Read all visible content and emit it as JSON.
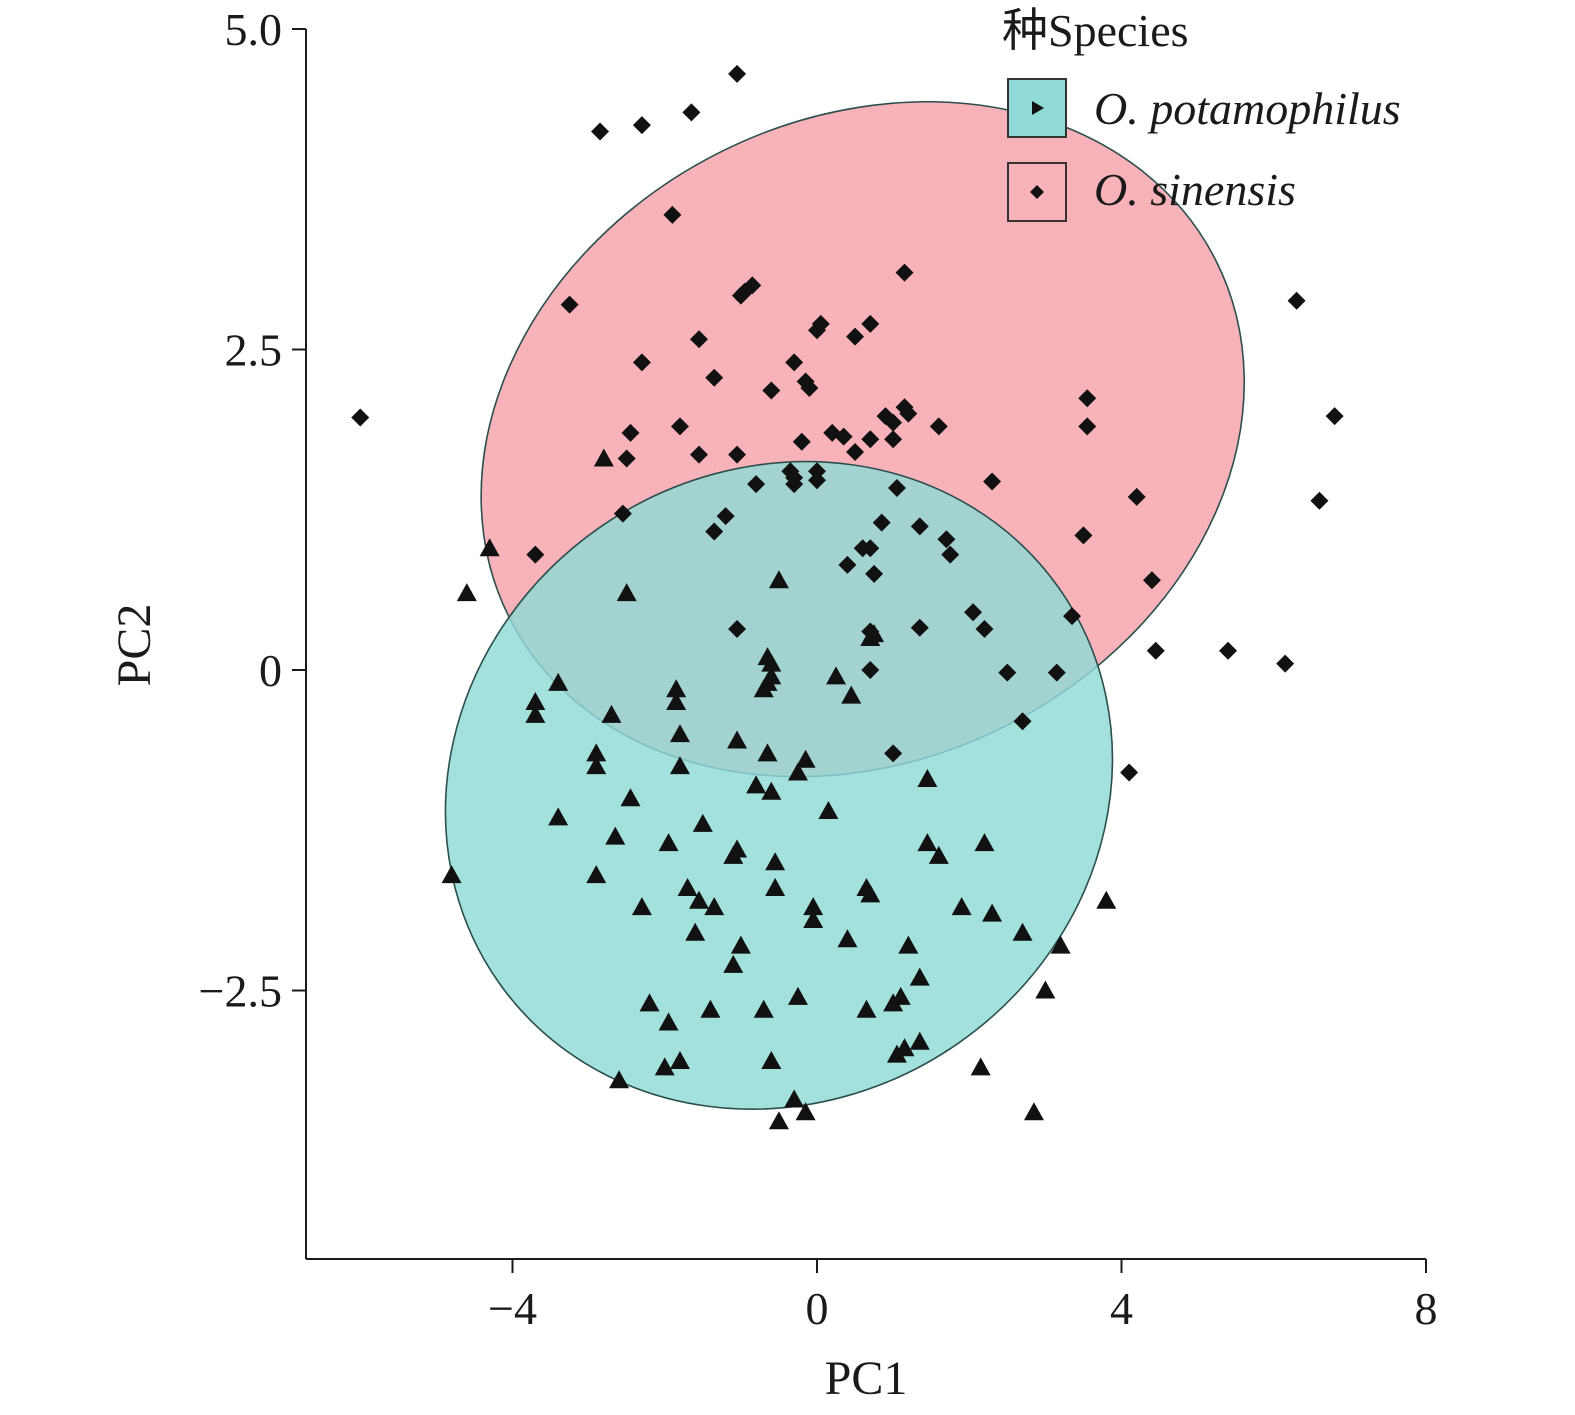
{
  "chart_data": {
    "type": "scatter",
    "title": "",
    "xlabel": "PC1",
    "ylabel": "PC2",
    "xlim": [
      -6.7,
      8
    ],
    "ylim": [
      -4.55,
      5.0
    ],
    "xticks": [
      -4,
      0,
      4,
      8
    ],
    "xtick_labels": [
      "−4",
      "0",
      "4",
      "8"
    ],
    "yticks": [
      5.0,
      2.5,
      0,
      -2.5
    ],
    "ytick_labels": [
      "5.0",
      "2.5",
      "0",
      "−2.5"
    ],
    "grid": false,
    "legend": {
      "title": "种Species",
      "position": "top-right"
    },
    "series": [
      {
        "name": "O. potamophilus",
        "marker": "triangle",
        "fill": "#8fdad6",
        "ellipse": {
          "cx": -0.5,
          "cy": -0.9,
          "rx": 4.5,
          "ry": 2.45,
          "angle_deg": -35
        },
        "points": [
          [
            -2.8,
            1.65
          ],
          [
            -4.3,
            0.95
          ],
          [
            -4.6,
            0.6
          ],
          [
            -2.5,
            0.6
          ],
          [
            -0.5,
            0.7
          ],
          [
            -3.4,
            -0.1
          ],
          [
            -3.7,
            -0.25
          ],
          [
            -3.7,
            -0.35
          ],
          [
            -2.7,
            -0.35
          ],
          [
            -1.85,
            -0.15
          ],
          [
            -1.85,
            -0.25
          ],
          [
            -1.8,
            -0.5
          ],
          [
            -2.9,
            -0.65
          ],
          [
            -2.9,
            -0.75
          ],
          [
            -1.8,
            -0.75
          ],
          [
            -1.05,
            -0.55
          ],
          [
            -0.65,
            -0.65
          ],
          [
            -0.8,
            -0.9
          ],
          [
            -0.6,
            -0.95
          ],
          [
            -0.15,
            -0.7
          ],
          [
            -0.25,
            -0.8
          ],
          [
            -2.45,
            -1.0
          ],
          [
            -3.4,
            -1.15
          ],
          [
            -2.65,
            -1.3
          ],
          [
            -1.5,
            -1.2
          ],
          [
            -1.95,
            -1.35
          ],
          [
            -1.05,
            -1.4
          ],
          [
            -1.1,
            -1.45
          ],
          [
            -0.55,
            -1.5
          ],
          [
            0.15,
            -1.1
          ],
          [
            -2.9,
            -1.6
          ],
          [
            -4.8,
            -1.6
          ],
          [
            -2.3,
            -1.85
          ],
          [
            -1.7,
            -1.7
          ],
          [
            -1.55,
            -1.8
          ],
          [
            -1.35,
            -1.85
          ],
          [
            -1.6,
            -2.05
          ],
          [
            -0.55,
            -1.7
          ],
          [
            0.65,
            -1.7
          ],
          [
            0.7,
            -1.75
          ],
          [
            -0.05,
            -1.85
          ],
          [
            -0.05,
            -1.95
          ],
          [
            0.4,
            -2.1
          ],
          [
            1.2,
            -2.15
          ],
          [
            1.9,
            -1.85
          ],
          [
            2.3,
            -1.9
          ],
          [
            1.6,
            -1.45
          ],
          [
            2.2,
            -1.35
          ],
          [
            1.45,
            -1.35
          ],
          [
            2.7,
            -2.05
          ],
          [
            3.2,
            -2.15
          ],
          [
            3.8,
            -1.8
          ],
          [
            -1.0,
            -2.15
          ],
          [
            -1.1,
            -2.3
          ],
          [
            1.35,
            -2.4
          ],
          [
            1.1,
            -2.55
          ],
          [
            1.0,
            -2.6
          ],
          [
            -2.2,
            -2.6
          ],
          [
            -1.4,
            -2.65
          ],
          [
            -0.7,
            -2.65
          ],
          [
            -0.25,
            -2.55
          ],
          [
            0.65,
            -2.65
          ],
          [
            -1.95,
            -2.75
          ],
          [
            3.0,
            -2.5
          ],
          [
            1.35,
            -2.9
          ],
          [
            1.15,
            -2.95
          ],
          [
            1.05,
            -3.0
          ],
          [
            -1.8,
            -3.05
          ],
          [
            -2.0,
            -3.1
          ],
          [
            -0.6,
            -3.05
          ],
          [
            2.15,
            -3.1
          ],
          [
            -2.6,
            -3.2
          ],
          [
            -0.3,
            -3.35
          ],
          [
            -0.15,
            -3.45
          ],
          [
            -0.5,
            -3.52
          ],
          [
            2.85,
            -3.45
          ],
          [
            0.25,
            -0.05
          ],
          [
            0.45,
            -0.2
          ],
          [
            0.7,
            0.25
          ],
          [
            0.75,
            0.28
          ],
          [
            1.45,
            -0.85
          ],
          [
            -0.6,
            -0.05
          ],
          [
            -0.65,
            -0.1
          ],
          [
            -0.7,
            -0.15
          ],
          [
            -0.6,
            0.05
          ],
          [
            -0.65,
            0.1
          ]
        ]
      },
      {
        "name": "O. sinensis",
        "marker": "diamond",
        "fill": "#f8b3ba",
        "ellipse": {
          "cx": 0.6,
          "cy": 1.8,
          "rx": 5.2,
          "ry": 2.5,
          "angle_deg": -27
        },
        "points": [
          [
            -1.05,
            4.65
          ],
          [
            -2.85,
            4.2
          ],
          [
            -2.3,
            4.25
          ],
          [
            -1.65,
            4.35
          ],
          [
            -1.9,
            3.55
          ],
          [
            1.15,
            3.1
          ],
          [
            -0.95,
            2.95
          ],
          [
            -0.85,
            3.0
          ],
          [
            -1.0,
            2.92
          ],
          [
            -3.25,
            2.85
          ],
          [
            0.05,
            2.7
          ],
          [
            0.0,
            2.65
          ],
          [
            0.7,
            2.7
          ],
          [
            0.5,
            2.6
          ],
          [
            -1.55,
            2.58
          ],
          [
            -2.3,
            2.4
          ],
          [
            -0.3,
            2.4
          ],
          [
            -1.35,
            2.28
          ],
          [
            -0.15,
            2.25
          ],
          [
            -0.1,
            2.2
          ],
          [
            -0.6,
            2.18
          ],
          [
            3.55,
            2.12
          ],
          [
            1.15,
            2.05
          ],
          [
            1.2,
            2.0
          ],
          [
            0.9,
            1.98
          ],
          [
            1.0,
            1.93
          ],
          [
            1.6,
            1.9
          ],
          [
            3.55,
            1.9
          ],
          [
            -1.8,
            1.9
          ],
          [
            -2.45,
            1.85
          ],
          [
            0.2,
            1.85
          ],
          [
            0.35,
            1.82
          ],
          [
            0.7,
            1.8
          ],
          [
            1.0,
            1.8
          ],
          [
            -0.2,
            1.78
          ],
          [
            0.5,
            1.7
          ],
          [
            -1.55,
            1.68
          ],
          [
            -1.05,
            1.68
          ],
          [
            -2.5,
            1.65
          ],
          [
            -0.35,
            1.55
          ],
          [
            -0.3,
            1.5
          ],
          [
            -0.3,
            1.45
          ],
          [
            0.0,
            1.55
          ],
          [
            0.0,
            1.48
          ],
          [
            -0.8,
            1.45
          ],
          [
            1.05,
            1.42
          ],
          [
            2.3,
            1.47
          ],
          [
            4.2,
            1.35
          ],
          [
            -2.55,
            1.22
          ],
          [
            -1.2,
            1.2
          ],
          [
            -1.35,
            1.08
          ],
          [
            0.85,
            1.15
          ],
          [
            1.35,
            1.12
          ],
          [
            1.7,
            1.02
          ],
          [
            3.5,
            1.05
          ],
          [
            0.6,
            0.95
          ],
          [
            0.7,
            0.95
          ],
          [
            1.75,
            0.9
          ],
          [
            0.75,
            0.75
          ],
          [
            0.4,
            0.82
          ],
          [
            4.4,
            0.7
          ],
          [
            2.05,
            0.45
          ],
          [
            3.35,
            0.42
          ],
          [
            2.2,
            0.32
          ],
          [
            1.35,
            0.33
          ],
          [
            -1.05,
            0.32
          ],
          [
            0.7,
            0.3
          ],
          [
            0.7,
            0.0
          ],
          [
            2.5,
            -0.02
          ],
          [
            3.15,
            -0.02
          ],
          [
            4.45,
            0.15
          ],
          [
            5.4,
            0.15
          ],
          [
            2.7,
            -0.4
          ],
          [
            1.0,
            -0.65
          ],
          [
            -3.7,
            0.9
          ],
          [
            -6.0,
            1.97
          ],
          [
            6.3,
            2.88
          ],
          [
            6.8,
            1.98
          ],
          [
            6.6,
            1.32
          ],
          [
            6.15,
            0.05
          ],
          [
            4.1,
            -0.8
          ]
        ]
      }
    ]
  }
}
